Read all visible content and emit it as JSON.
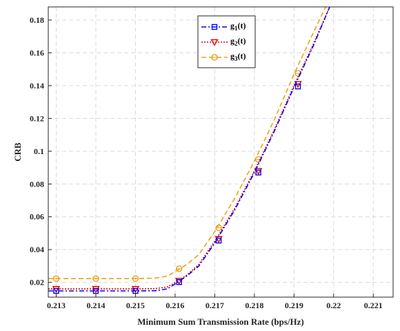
{
  "chart_data": {
    "type": "line",
    "xlabel": "Minimum Sum Transmission Rate (bps/Hz)",
    "ylabel": "CRB",
    "xlim": [
      0.2128,
      0.2215
    ],
    "ylim": [
      0.011,
      0.188
    ],
    "x_ticks": [
      0.213,
      0.214,
      0.215,
      0.216,
      0.217,
      0.218,
      0.219,
      0.22,
      0.221
    ],
    "x_tick_labels": [
      "0.213",
      "0.214",
      "0.215",
      "0.216",
      "0.217",
      "0.218",
      "0.219",
      "0.22",
      "0.221"
    ],
    "y_ticks": [
      0.02,
      0.04,
      0.06,
      0.08,
      0.1,
      0.12,
      0.14,
      0.16,
      0.18
    ],
    "y_tick_labels": [
      "0.02",
      "0.04",
      "0.06",
      "0.08",
      "0.1",
      "0.12",
      "0.14",
      "0.16",
      "0.18"
    ],
    "grid": true,
    "legend_position": "top-center",
    "series": [
      {
        "name": "g1(t)",
        "name_main": "g",
        "name_sub": "1",
        "name_tail": "(t)",
        "color": "#0000ff",
        "dash": "dash-dot",
        "marker": "square",
        "curve_x": [
          0.2128,
          0.213,
          0.214,
          0.215,
          0.2155,
          0.2158,
          0.216,
          0.2163,
          0.2166,
          0.217,
          0.2175,
          0.218,
          0.2185,
          0.219,
          0.2195,
          0.2199
        ],
        "curve_y": [
          0.0148,
          0.0148,
          0.0148,
          0.0148,
          0.0149,
          0.016,
          0.019,
          0.024,
          0.03,
          0.044,
          0.064,
          0.087,
          0.112,
          0.139,
          0.165,
          0.188
        ],
        "marker_x": [
          0.213,
          0.214,
          0.215,
          0.2161,
          0.2171,
          0.2181,
          0.2191
        ],
        "marker_y": [
          0.0148,
          0.0148,
          0.0148,
          0.0202,
          0.0455,
          0.087,
          0.1395
        ]
      },
      {
        "name": "g2(t)",
        "name_main": "g",
        "name_sub": "2",
        "name_tail": "(t)",
        "color": "#e60000",
        "dash": "dotted",
        "marker": "triangle-down",
        "curve_x": [
          0.2128,
          0.213,
          0.214,
          0.215,
          0.2155,
          0.2158,
          0.216,
          0.2163,
          0.2166,
          0.217,
          0.2175,
          0.218,
          0.2185,
          0.219,
          0.2195,
          0.2199
        ],
        "curve_y": [
          0.016,
          0.016,
          0.016,
          0.016,
          0.0162,
          0.0172,
          0.0198,
          0.0245,
          0.031,
          0.045,
          0.065,
          0.088,
          0.113,
          0.14,
          0.166,
          0.188
        ],
        "marker_x": [
          0.213,
          0.214,
          0.215,
          0.2161,
          0.2171,
          0.2181,
          0.2191
        ],
        "marker_y": [
          0.016,
          0.016,
          0.016,
          0.021,
          0.0465,
          0.088,
          0.141
        ]
      },
      {
        "name": "g3(t)",
        "name_main": "g",
        "name_sub": "3",
        "name_tail": "(t)",
        "color": "#e8a317",
        "dash": "dashed",
        "marker": "circle",
        "curve_x": [
          0.2128,
          0.213,
          0.214,
          0.215,
          0.2155,
          0.2158,
          0.216,
          0.2163,
          0.2166,
          0.217,
          0.2175,
          0.218,
          0.2185,
          0.219,
          0.2195,
          0.2198
        ],
        "curve_y": [
          0.0223,
          0.0223,
          0.0223,
          0.0223,
          0.0226,
          0.0238,
          0.0265,
          0.031,
          0.037,
          0.051,
          0.071,
          0.094,
          0.119,
          0.147,
          0.173,
          0.188
        ],
        "marker_x": [
          0.213,
          0.214,
          0.215,
          0.2161,
          0.2171,
          0.2181,
          0.2191
        ],
        "marker_y": [
          0.0223,
          0.0223,
          0.0223,
          0.0283,
          0.0533,
          0.095,
          0.1475
        ]
      }
    ]
  }
}
